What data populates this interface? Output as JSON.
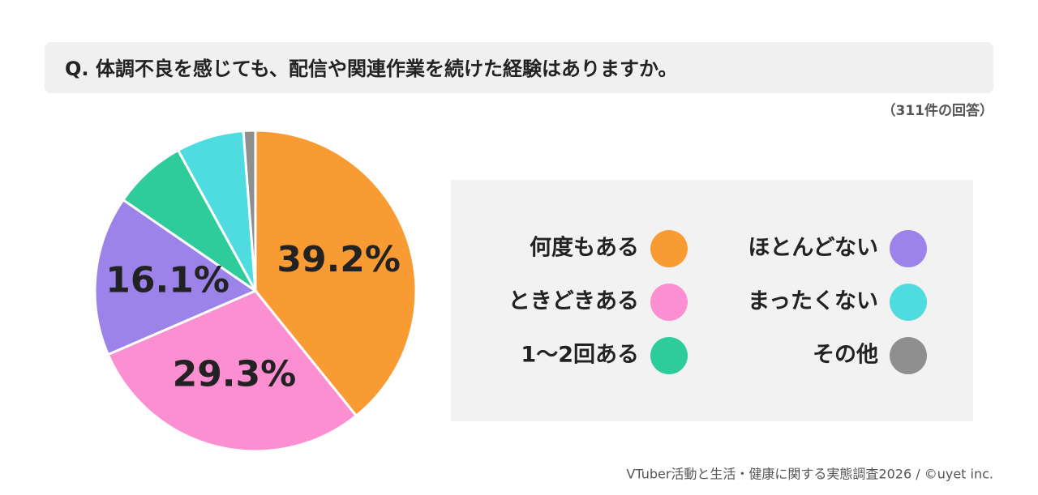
{
  "chart_data": {
    "type": "pie",
    "title": "Q. 体調不良を感じても、配信や関連作業を続けた経験はありますか。",
    "subtitle": "（311件の回答）",
    "source": "VTuber活動と生活・健康に関する実態調査2026 / ©uyet inc.",
    "categories": [
      "何度もある",
      "ときどきある",
      "ほとんどない",
      "1〜2回ある",
      "まったくない",
      "その他"
    ],
    "values": [
      39.2,
      29.3,
      16.1,
      7.4,
      6.8,
      1.2
    ],
    "value_labels": [
      "39.2%",
      "29.3%",
      "16.1%",
      null,
      null,
      null
    ],
    "colors": [
      "#f99b33",
      "#fb8fd2",
      "#9b83ea",
      "#2ecc9a",
      "#4fdce0",
      "#8f8f8f"
    ]
  }
}
